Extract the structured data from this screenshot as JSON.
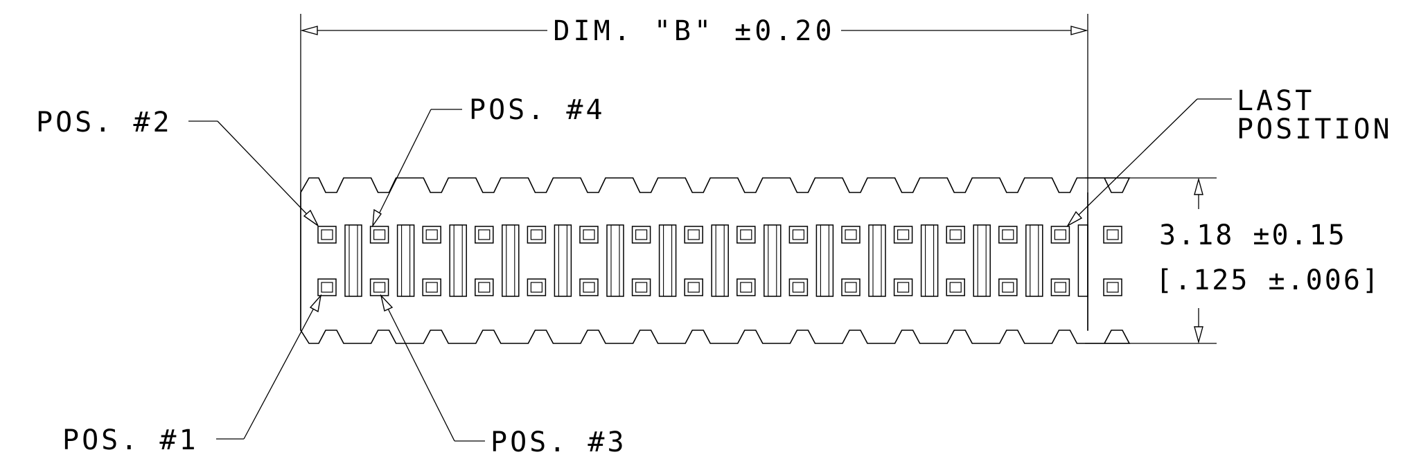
{
  "dimensions": {
    "width_label": "DIM. \"B\" ±0.20",
    "height_mm": "3.18 ±0.15",
    "height_in": "[.125 ±.006]"
  },
  "callouts": {
    "pos1": "POS. #1",
    "pos2": "POS. #2",
    "pos3": "POS. #3",
    "pos4": "POS. #4",
    "last_line1": "LAST",
    "last_line2": "POSITION"
  }
}
